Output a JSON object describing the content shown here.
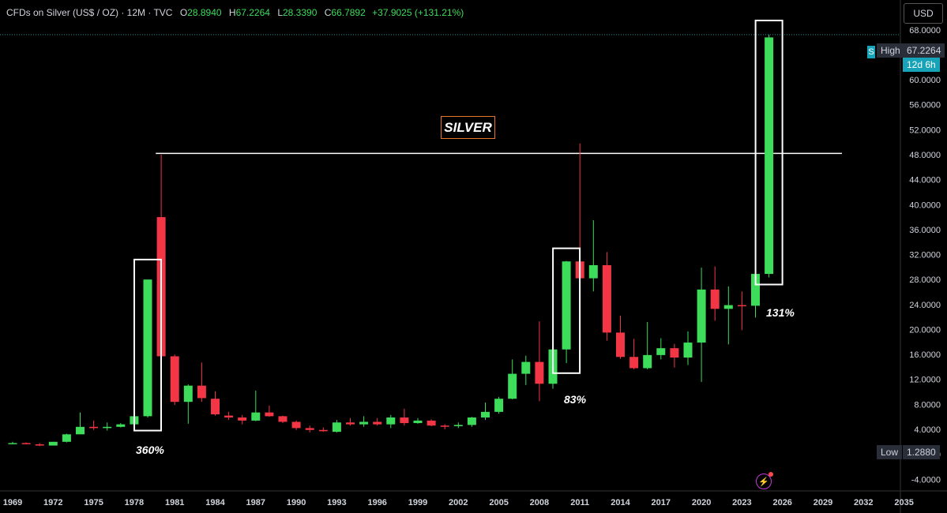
{
  "header": {
    "symbol": "CFDs on Silver (US$ / OZ) · 12M · TVC",
    "open_label": "O",
    "open": "28.8940",
    "high_label": "H",
    "high": "67.2264",
    "low_label": "L",
    "low": "28.3390",
    "close_label": "C",
    "close": "66.7892",
    "change": "+37.9025 (+131.21%)"
  },
  "currency": "USD",
  "price_tags": {
    "symbol_marker": "S",
    "high_label": "High",
    "high_value": "67.2264",
    "timer": "12d 6h",
    "low_label": "Low",
    "low_value": "1.2880"
  },
  "annotations": {
    "title_box": "SILVER",
    "pct_1": "360%",
    "pct_2": "83%",
    "pct_3": "131%"
  },
  "colors": {
    "up": "#3ddc5a",
    "down": "#f23645",
    "annotation_box": "#ffffff",
    "title_border": "#e8762a",
    "background": "#000000"
  },
  "chart_data": {
    "type": "candlestick",
    "interval": "12M",
    "y_ticks": [
      "68.0000",
      "64.0000",
      "60.0000",
      "56.0000",
      "52.0000",
      "48.0000",
      "44.0000",
      "40.0000",
      "36.0000",
      "32.0000",
      "28.0000",
      "24.0000",
      "20.0000",
      "16.0000",
      "12.0000",
      "8.0000",
      "4.0000",
      "0.0000",
      "-4.0000"
    ],
    "x_ticks": [
      "1969",
      "1972",
      "1975",
      "1978",
      "1981",
      "1984",
      "1987",
      "1990",
      "1993",
      "1996",
      "1999",
      "2002",
      "2005",
      "2008",
      "2011",
      "2014",
      "2017",
      "2020",
      "2023",
      "2026",
      "2029",
      "2032",
      "2035"
    ],
    "ylim": [
      -4.6,
      70
    ],
    "horizontal_line": 48.2,
    "candles": [
      {
        "year": 1969,
        "o": 1.8,
        "h": 2.0,
        "l": 1.6,
        "c": 1.8
      },
      {
        "year": 1970,
        "o": 1.8,
        "h": 1.9,
        "l": 1.6,
        "c": 1.7
      },
      {
        "year": 1971,
        "o": 1.6,
        "h": 1.8,
        "l": 1.3,
        "c": 1.4
      },
      {
        "year": 1972,
        "o": 1.4,
        "h": 2.0,
        "l": 1.4,
        "c": 2.0
      },
      {
        "year": 1973,
        "o": 2.0,
        "h": 3.3,
        "l": 1.9,
        "c": 3.2
      },
      {
        "year": 1974,
        "o": 3.2,
        "h": 6.7,
        "l": 3.2,
        "c": 4.4
      },
      {
        "year": 1975,
        "o": 4.4,
        "h": 5.4,
        "l": 3.9,
        "c": 4.2
      },
      {
        "year": 1976,
        "o": 4.2,
        "h": 5.1,
        "l": 3.8,
        "c": 4.4
      },
      {
        "year": 1977,
        "o": 4.4,
        "h": 5.0,
        "l": 4.3,
        "c": 4.8
      },
      {
        "year": 1978,
        "o": 4.8,
        "h": 6.3,
        "l": 4.8,
        "c": 6.1
      },
      {
        "year": 1979,
        "o": 6.1,
        "h": 28.0,
        "l": 5.9,
        "c": 28.0
      },
      {
        "year": 1980,
        "o": 38.0,
        "h": 48.0,
        "l": 10.8,
        "c": 15.7
      },
      {
        "year": 1981,
        "o": 15.7,
        "h": 16.0,
        "l": 7.9,
        "c": 8.4
      },
      {
        "year": 1982,
        "o": 8.4,
        "h": 11.2,
        "l": 4.9,
        "c": 11.0
      },
      {
        "year": 1983,
        "o": 11.0,
        "h": 14.7,
        "l": 8.4,
        "c": 9.0
      },
      {
        "year": 1984,
        "o": 8.9,
        "h": 10.1,
        "l": 6.2,
        "c": 6.4
      },
      {
        "year": 1985,
        "o": 6.2,
        "h": 6.8,
        "l": 5.5,
        "c": 5.9
      },
      {
        "year": 1986,
        "o": 5.9,
        "h": 6.3,
        "l": 4.8,
        "c": 5.4
      },
      {
        "year": 1987,
        "o": 5.4,
        "h": 10.2,
        "l": 5.3,
        "c": 6.7
      },
      {
        "year": 1988,
        "o": 6.7,
        "h": 7.8,
        "l": 6.0,
        "c": 6.1
      },
      {
        "year": 1989,
        "o": 6.1,
        "h": 6.2,
        "l": 5.0,
        "c": 5.2
      },
      {
        "year": 1990,
        "o": 5.2,
        "h": 5.4,
        "l": 3.9,
        "c": 4.2
      },
      {
        "year": 1991,
        "o": 4.2,
        "h": 4.6,
        "l": 3.5,
        "c": 3.9
      },
      {
        "year": 1992,
        "o": 3.9,
        "h": 4.3,
        "l": 3.6,
        "c": 3.7
      },
      {
        "year": 1993,
        "o": 3.6,
        "h": 5.5,
        "l": 3.5,
        "c": 5.1
      },
      {
        "year": 1994,
        "o": 5.1,
        "h": 5.8,
        "l": 4.6,
        "c": 4.8
      },
      {
        "year": 1995,
        "o": 4.8,
        "h": 6.1,
        "l": 4.4,
        "c": 5.2
      },
      {
        "year": 1996,
        "o": 5.2,
        "h": 5.8,
        "l": 4.6,
        "c": 4.8
      },
      {
        "year": 1997,
        "o": 4.8,
        "h": 6.3,
        "l": 4.2,
        "c": 5.9
      },
      {
        "year": 1998,
        "o": 5.9,
        "h": 7.3,
        "l": 4.6,
        "c": 5.0
      },
      {
        "year": 1999,
        "o": 5.0,
        "h": 5.8,
        "l": 4.9,
        "c": 5.4
      },
      {
        "year": 2000,
        "o": 5.4,
        "h": 5.6,
        "l": 4.5,
        "c": 4.6
      },
      {
        "year": 2001,
        "o": 4.6,
        "h": 4.8,
        "l": 4.0,
        "c": 4.5
      },
      {
        "year": 2002,
        "o": 4.5,
        "h": 5.1,
        "l": 4.2,
        "c": 4.7
      },
      {
        "year": 2003,
        "o": 4.7,
        "h": 6.0,
        "l": 4.4,
        "c": 5.9
      },
      {
        "year": 2004,
        "o": 5.9,
        "h": 8.3,
        "l": 5.5,
        "c": 6.8
      },
      {
        "year": 2005,
        "o": 6.8,
        "h": 9.2,
        "l": 6.5,
        "c": 8.9
      },
      {
        "year": 2006,
        "o": 8.9,
        "h": 15.2,
        "l": 8.8,
        "c": 12.9
      },
      {
        "year": 2007,
        "o": 12.9,
        "h": 15.8,
        "l": 11.1,
        "c": 14.8
      },
      {
        "year": 2008,
        "o": 14.8,
        "h": 21.3,
        "l": 8.5,
        "c": 11.3
      },
      {
        "year": 2009,
        "o": 11.3,
        "h": 19.3,
        "l": 10.5,
        "c": 16.8
      },
      {
        "year": 2010,
        "o": 16.8,
        "h": 31.0,
        "l": 14.6,
        "c": 30.9
      },
      {
        "year": 2011,
        "o": 30.9,
        "h": 49.8,
        "l": 26.1,
        "c": 28.2
      },
      {
        "year": 2012,
        "o": 28.2,
        "h": 37.5,
        "l": 26.1,
        "c": 30.3
      },
      {
        "year": 2013,
        "o": 30.3,
        "h": 32.4,
        "l": 18.2,
        "c": 19.5
      },
      {
        "year": 2014,
        "o": 19.5,
        "h": 22.2,
        "l": 15.3,
        "c": 15.6
      },
      {
        "year": 2015,
        "o": 15.6,
        "h": 18.5,
        "l": 13.6,
        "c": 13.8
      },
      {
        "year": 2016,
        "o": 13.8,
        "h": 21.2,
        "l": 13.6,
        "c": 15.9
      },
      {
        "year": 2017,
        "o": 15.9,
        "h": 18.6,
        "l": 15.2,
        "c": 17.0
      },
      {
        "year": 2018,
        "o": 17.0,
        "h": 17.7,
        "l": 13.9,
        "c": 15.5
      },
      {
        "year": 2019,
        "o": 15.5,
        "h": 19.7,
        "l": 14.3,
        "c": 17.9
      },
      {
        "year": 2020,
        "o": 17.9,
        "h": 29.9,
        "l": 11.6,
        "c": 26.4
      },
      {
        "year": 2021,
        "o": 26.4,
        "h": 30.1,
        "l": 21.4,
        "c": 23.3
      },
      {
        "year": 2022,
        "o": 23.3,
        "h": 26.9,
        "l": 17.6,
        "c": 23.9
      },
      {
        "year": 2023,
        "o": 23.9,
        "h": 26.1,
        "l": 19.9,
        "c": 23.8
      },
      {
        "year": 2024,
        "o": 23.8,
        "h": 35.0,
        "l": 21.9,
        "c": 28.9
      },
      {
        "year": 2025,
        "o": 28.9,
        "h": 67.2264,
        "l": 28.339,
        "c": 66.7892
      }
    ],
    "highlight_boxes": [
      {
        "from_year": 1979,
        "to_year": 1979,
        "low": 3.8,
        "high": 31.2
      },
      {
        "from_year": 2010,
        "to_year": 2010,
        "low": 13.0,
        "high": 33.0
      },
      {
        "from_year": 2025,
        "to_year": 2025,
        "low": 27.2,
        "high": 69.5
      }
    ]
  }
}
